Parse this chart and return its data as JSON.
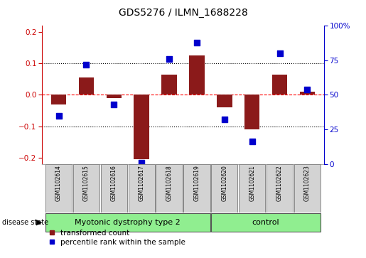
{
  "title": "GDS5276 / ILMN_1688228",
  "samples": [
    "GSM1102614",
    "GSM1102615",
    "GSM1102616",
    "GSM1102617",
    "GSM1102618",
    "GSM1102619",
    "GSM1102620",
    "GSM1102621",
    "GSM1102622",
    "GSM1102623"
  ],
  "red_bars": [
    -0.03,
    0.055,
    -0.01,
    -0.205,
    0.065,
    0.125,
    -0.04,
    -0.11,
    0.065,
    0.01
  ],
  "blue_pct": [
    35,
    72,
    43,
    1,
    76,
    88,
    32,
    16,
    80,
    54
  ],
  "ylim_left": [
    -0.22,
    0.22
  ],
  "ylim_right": [
    0,
    100
  ],
  "yticks_left": [
    -0.2,
    -0.1,
    0.0,
    0.1,
    0.2
  ],
  "yticks_right": [
    0,
    25,
    50,
    75,
    100
  ],
  "ytick_labels_right": [
    "0",
    "25",
    "50",
    "75",
    "100%"
  ],
  "groups": [
    {
      "label": "Myotonic dystrophy type 2",
      "start": 0,
      "end": 5,
      "color": "#90EE90"
    },
    {
      "label": "control",
      "start": 6,
      "end": 9,
      "color": "#90EE90"
    }
  ],
  "disease_state_label": "disease state",
  "bar_color": "#8B1A1A",
  "dot_color": "#0000CD",
  "label_color_left": "#CC0000",
  "label_color_right": "#0000CD",
  "legend_red_label": "transformed count",
  "legend_blue_label": "percentile rank within the sample",
  "bar_width": 0.55,
  "dot_size": 28,
  "sample_box_color": "#D3D3D3",
  "sample_box_edge": "#888888",
  "group_edge_color": "#555555"
}
